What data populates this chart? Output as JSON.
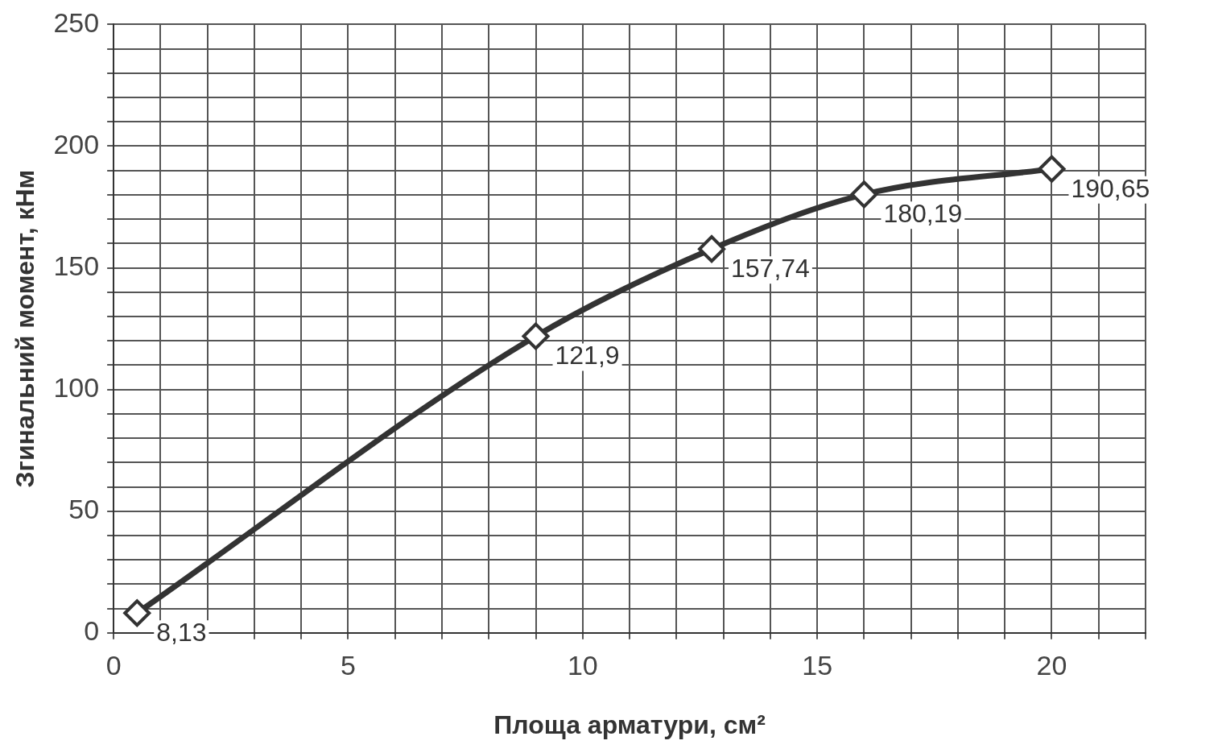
{
  "chart_data": {
    "type": "line",
    "xlabel": "Площа арматури, см²",
    "ylabel": "Згинальний момент, кНм",
    "x": [
      0.5,
      9,
      12.75,
      16,
      20
    ],
    "series": [
      {
        "color": "#333333",
        "values": [
          8.13,
          121.9,
          157.74,
          180.19,
          190.65
        ],
        "value_labels": [
          "8,13",
          "121,9",
          "157,74",
          "180,19",
          "190,65"
        ]
      }
    ],
    "xlim": [
      0,
      22
    ],
    "xticks": [
      0,
      {
        "value": 1,
        "label": null
      },
      {
        "value": 2,
        "label": null
      },
      {
        "value": 3,
        "label": null
      },
      {
        "value": 4,
        "label": null
      },
      5,
      {
        "value": 6,
        "label": null
      },
      {
        "value": 7,
        "label": null
      },
      {
        "value": 8,
        "label": null
      },
      {
        "value": 9,
        "label": null
      },
      10,
      {
        "value": 11,
        "label": null
      },
      {
        "value": 12,
        "label": null
      },
      {
        "value": 13,
        "label": null
      },
      {
        "value": 14,
        "label": null
      },
      15,
      {
        "value": 16,
        "label": null
      },
      {
        "value": 17,
        "label": null
      },
      {
        "value": 18,
        "label": null
      },
      {
        "value": 19,
        "label": null
      },
      20,
      {
        "value": 21,
        "label": null
      },
      {
        "value": 22,
        "label": null
      }
    ],
    "ylim": [
      0,
      250
    ],
    "yticks": [
      0,
      {
        "value": 10,
        "label": null
      },
      {
        "value": 20,
        "label": null
      },
      {
        "value": 30,
        "label": null
      },
      {
        "value": 40,
        "label": null
      },
      50,
      {
        "value": 60,
        "label": null
      },
      {
        "value": 70,
        "label": null
      },
      {
        "value": 80,
        "label": null
      },
      {
        "value": 90,
        "label": null
      },
      100,
      {
        "value": 110,
        "label": null
      },
      {
        "value": 120,
        "label": null
      },
      {
        "value": 130,
        "label": null
      },
      {
        "value": 140,
        "label": null
      },
      150,
      {
        "value": 160,
        "label": null
      },
      {
        "value": 170,
        "label": null
      },
      {
        "value": 180,
        "label": null
      },
      {
        "value": 190,
        "label": null
      },
      200,
      {
        "value": 210,
        "label": null
      },
      {
        "value": 220,
        "label": null
      },
      {
        "value": 230,
        "label": null
      },
      {
        "value": 240,
        "label": null
      },
      250
    ],
    "grid": true,
    "legend": false,
    "marker": "diamond",
    "line_style": "solid"
  }
}
